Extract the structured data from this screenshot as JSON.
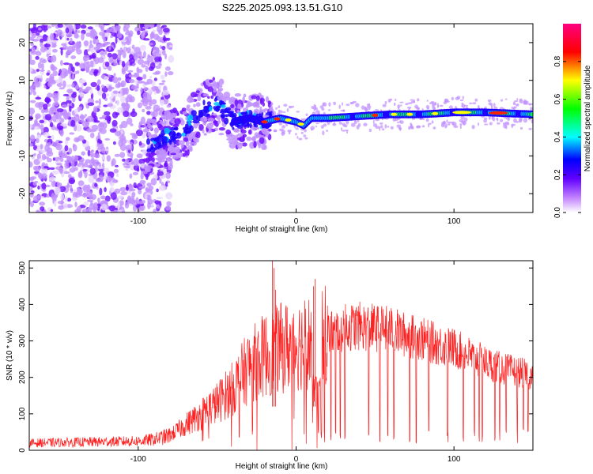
{
  "figure": {
    "title": "S225.2025.093.13.51.G10"
  },
  "chart_data": [
    {
      "type": "heatmap",
      "xlabel": "Height of straight line (km)",
      "ylabel": "Frequency (Hz)",
      "xlim": [
        -169,
        150
      ],
      "ylim": [
        -25,
        25
      ],
      "xticks": [
        -100,
        0,
        100
      ],
      "yticks": [
        -20,
        -10,
        0,
        10,
        20
      ],
      "colorbar": {
        "label": "Normalized spectral amplitude",
        "range": [
          0,
          1
        ],
        "ticks": [
          0.0,
          0.2,
          0.4,
          0.6,
          0.8
        ],
        "tick_labels": [
          "0.0",
          "0.2",
          "0.4",
          "0.6",
          "0.8"
        ],
        "colors": [
          "#ffffff",
          "#a000ff",
          "#0000ff",
          "#00ffff",
          "#00ff00",
          "#ffff00",
          "#ff0000",
          "#ff0080"
        ]
      },
      "ridge": {
        "description_points_x": [
          -90,
          -80,
          -70,
          -60,
          -50,
          -40,
          -30,
          -20,
          -10,
          0,
          5,
          10,
          20,
          40,
          60,
          80,
          100,
          120,
          150
        ],
        "frequency_y": [
          -7,
          -5,
          -3,
          2,
          4,
          -1,
          0,
          -1,
          0,
          -1,
          -2,
          0,
          0,
          0.5,
          1,
          1,
          1.5,
          1.5,
          1
        ]
      }
    },
    {
      "type": "line",
      "xlabel": "Height of straight line (km)",
      "ylabel": "SNR (10 * v/v)",
      "xlim": [
        -169,
        150
      ],
      "ylim": [
        0,
        520
      ],
      "xticks": [
        -100,
        0,
        100
      ],
      "yticks": [
        0,
        100,
        200,
        300,
        400,
        500
      ],
      "color": "#ff2020",
      "envelope": {
        "x": [
          -169,
          -100,
          -90,
          -80,
          -70,
          -60,
          -50,
          -40,
          -30,
          -20,
          -10,
          0,
          10,
          20,
          30,
          40,
          50,
          60,
          70,
          80,
          90,
          100,
          110,
          120,
          130,
          140,
          150
        ],
        "y": [
          20,
          25,
          30,
          40,
          70,
          100,
          130,
          170,
          230,
          260,
          280,
          290,
          300,
          320,
          335,
          340,
          335,
          330,
          315,
          305,
          290,
          280,
          260,
          240,
          225,
          215,
          205
        ]
      },
      "spikes": {
        "x": [
          -15,
          -14,
          -13,
          12,
          11
        ],
        "y": [
          520,
          500,
          440,
          470,
          450
        ]
      },
      "dropouts_x": [
        14,
        16,
        18,
        22,
        25,
        28,
        31,
        46,
        53,
        58,
        62,
        72,
        76,
        84,
        96,
        106,
        113,
        116,
        118,
        126,
        129,
        133,
        140,
        144,
        147
      ]
    }
  ]
}
